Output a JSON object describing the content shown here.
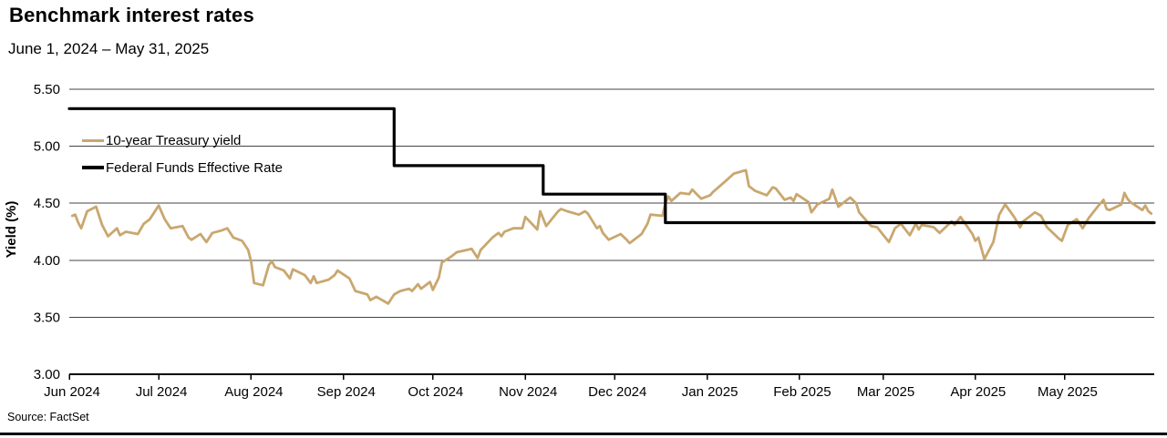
{
  "header": {
    "title": "Benchmark interest rates",
    "subtitle": "June 1, 2024 – May 31, 2025"
  },
  "source": "Source: FactSet",
  "chart_data": {
    "type": "line",
    "title": "Benchmark interest rates",
    "subtitle": "June 1, 2024 – May 31, 2025",
    "xlabel": "",
    "ylabel": "Yield (%)",
    "ylim": [
      3.0,
      5.5
    ],
    "yticks": [
      3.0,
      3.5,
      4.0,
      4.5,
      5.0,
      5.5
    ],
    "ytick_labels": [
      "3.00",
      "3.50",
      "4.00",
      "4.50",
      "5.00",
      "5.50"
    ],
    "x_unit": "days since 2024-06-01",
    "x_range_days": [
      0,
      364
    ],
    "xticks_days": [
      0,
      30,
      61,
      92,
      122,
      153,
      183,
      214,
      245,
      273,
      304,
      334
    ],
    "xtick_labels": [
      "Jun 2024",
      "Jul 2024",
      "Aug 2024",
      "Sep 2024",
      "Oct 2024",
      "Nov 2024",
      "Dec 2024",
      "Jan 2025",
      "Feb 2025",
      "Mar 2025",
      "Apr 2025",
      "May 2025"
    ],
    "grid": "horizontal",
    "grid_color": "#454545",
    "legend_position": "inside-top-left",
    "legend": [
      {
        "label": "10-year Treasury yield",
        "color": "#C9A76F"
      },
      {
        "label": "Federal Funds Effective Rate",
        "color": "#000000"
      }
    ],
    "series": [
      {
        "name": "10-year Treasury yield",
        "color": "#C9A76F",
        "stroke_width": 2.8,
        "points": [
          [
            1,
            4.39
          ],
          [
            2,
            4.4
          ],
          [
            3,
            4.33
          ],
          [
            4,
            4.28
          ],
          [
            6,
            4.43
          ],
          [
            9,
            4.47
          ],
          [
            11,
            4.31
          ],
          [
            13,
            4.21
          ],
          [
            16,
            4.28
          ],
          [
            17,
            4.22
          ],
          [
            19,
            4.25
          ],
          [
            23,
            4.23
          ],
          [
            25,
            4.32
          ],
          [
            27,
            4.36
          ],
          [
            30,
            4.48
          ],
          [
            32,
            4.36
          ],
          [
            34,
            4.28
          ],
          [
            38,
            4.3
          ],
          [
            40,
            4.2
          ],
          [
            41,
            4.18
          ],
          [
            44,
            4.23
          ],
          [
            46,
            4.16
          ],
          [
            48,
            4.24
          ],
          [
            51,
            4.26
          ],
          [
            53,
            4.28
          ],
          [
            55,
            4.2
          ],
          [
            58,
            4.17
          ],
          [
            60,
            4.09
          ],
          [
            61,
            3.99
          ],
          [
            62,
            3.8
          ],
          [
            65,
            3.78
          ],
          [
            67,
            3.96
          ],
          [
            68,
            3.99
          ],
          [
            69,
            3.94
          ],
          [
            72,
            3.91
          ],
          [
            74,
            3.84
          ],
          [
            75,
            3.92
          ],
          [
            79,
            3.87
          ],
          [
            81,
            3.8
          ],
          [
            82,
            3.86
          ],
          [
            83,
            3.8
          ],
          [
            87,
            3.83
          ],
          [
            89,
            3.87
          ],
          [
            90,
            3.91
          ],
          [
            94,
            3.84
          ],
          [
            96,
            3.73
          ],
          [
            100,
            3.7
          ],
          [
            101,
            3.65
          ],
          [
            103,
            3.68
          ],
          [
            107,
            3.62
          ],
          [
            109,
            3.7
          ],
          [
            111,
            3.73
          ],
          [
            114,
            3.75
          ],
          [
            115,
            3.73
          ],
          [
            117,
            3.79
          ],
          [
            118,
            3.75
          ],
          [
            121,
            3.81
          ],
          [
            122,
            3.74
          ],
          [
            124,
            3.85
          ],
          [
            125,
            3.98
          ],
          [
            128,
            4.03
          ],
          [
            130,
            4.07
          ],
          [
            135,
            4.1
          ],
          [
            137,
            4.02
          ],
          [
            138,
            4.09
          ],
          [
            142,
            4.2
          ],
          [
            144,
            4.24
          ],
          [
            145,
            4.21
          ],
          [
            146,
            4.25
          ],
          [
            149,
            4.28
          ],
          [
            152,
            4.28
          ],
          [
            153,
            4.38
          ],
          [
            157,
            4.27
          ],
          [
            158,
            4.43
          ],
          [
            160,
            4.3
          ],
          [
            164,
            4.43
          ],
          [
            165,
            4.45
          ],
          [
            167,
            4.43
          ],
          [
            171,
            4.4
          ],
          [
            173,
            4.43
          ],
          [
            174,
            4.41
          ],
          [
            177,
            4.28
          ],
          [
            178,
            4.3
          ],
          [
            179,
            4.24
          ],
          [
            181,
            4.18
          ],
          [
            185,
            4.23
          ],
          [
            187,
            4.18
          ],
          [
            188,
            4.15
          ],
          [
            192,
            4.23
          ],
          [
            194,
            4.32
          ],
          [
            195,
            4.4
          ],
          [
            199,
            4.39
          ],
          [
            200,
            4.5
          ],
          [
            201,
            4.56
          ],
          [
            202,
            4.52
          ],
          [
            205,
            4.59
          ],
          [
            208,
            4.58
          ],
          [
            209,
            4.62
          ],
          [
            212,
            4.54
          ],
          [
            215,
            4.57
          ],
          [
            216,
            4.6
          ],
          [
            220,
            4.69
          ],
          [
            223,
            4.76
          ],
          [
            227,
            4.79
          ],
          [
            228,
            4.65
          ],
          [
            230,
            4.61
          ],
          [
            234,
            4.57
          ],
          [
            236,
            4.64
          ],
          [
            237,
            4.63
          ],
          [
            240,
            4.53
          ],
          [
            242,
            4.55
          ],
          [
            243,
            4.52
          ],
          [
            244,
            4.58
          ],
          [
            248,
            4.51
          ],
          [
            249,
            4.42
          ],
          [
            251,
            4.49
          ],
          [
            255,
            4.54
          ],
          [
            256,
            4.62
          ],
          [
            258,
            4.47
          ],
          [
            262,
            4.55
          ],
          [
            264,
            4.5
          ],
          [
            265,
            4.42
          ],
          [
            269,
            4.3
          ],
          [
            271,
            4.29
          ],
          [
            275,
            4.16
          ],
          [
            277,
            4.28
          ],
          [
            279,
            4.32
          ],
          [
            282,
            4.22
          ],
          [
            284,
            4.32
          ],
          [
            285,
            4.27
          ],
          [
            286,
            4.31
          ],
          [
            290,
            4.29
          ],
          [
            292,
            4.24
          ],
          [
            296,
            4.34
          ],
          [
            297,
            4.31
          ],
          [
            299,
            4.38
          ],
          [
            303,
            4.23
          ],
          [
            304,
            4.17
          ],
          [
            305,
            4.2
          ],
          [
            307,
            4.01
          ],
          [
            310,
            4.16
          ],
          [
            312,
            4.4
          ],
          [
            314,
            4.49
          ],
          [
            317,
            4.38
          ],
          [
            319,
            4.29
          ],
          [
            320,
            4.34
          ],
          [
            324,
            4.42
          ],
          [
            326,
            4.39
          ],
          [
            328,
            4.29
          ],
          [
            332,
            4.19
          ],
          [
            333,
            4.17
          ],
          [
            335,
            4.31
          ],
          [
            338,
            4.36
          ],
          [
            340,
            4.28
          ],
          [
            342,
            4.37
          ],
          [
            345,
            4.47
          ],
          [
            347,
            4.53
          ],
          [
            348,
            4.45
          ],
          [
            349,
            4.44
          ],
          [
            353,
            4.49
          ],
          [
            354,
            4.59
          ],
          [
            355,
            4.54
          ],
          [
            356,
            4.51
          ],
          [
            360,
            4.44
          ],
          [
            361,
            4.48
          ],
          [
            362,
            4.43
          ],
          [
            363,
            4.41
          ]
        ]
      },
      {
        "name": "Federal Funds Effective Rate",
        "color": "#000000",
        "stroke_width": 3.2,
        "points": [
          [
            0,
            5.33
          ],
          [
            109,
            5.33
          ],
          [
            109,
            4.83
          ],
          [
            159,
            4.83
          ],
          [
            159,
            4.58
          ],
          [
            200,
            4.58
          ],
          [
            200,
            4.33
          ],
          [
            364,
            4.33
          ]
        ]
      }
    ]
  }
}
